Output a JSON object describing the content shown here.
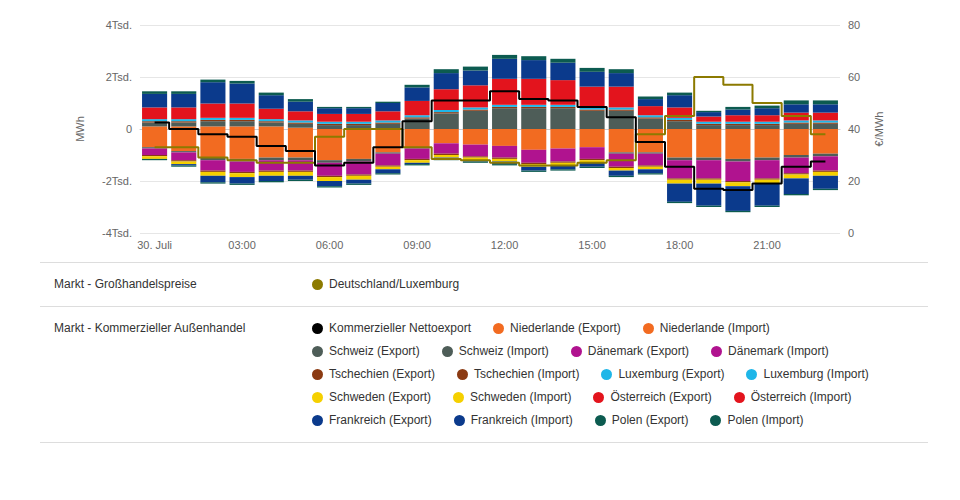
{
  "chart_data": {
    "type": "bar",
    "stacked": true,
    "grid": true,
    "legend": "bottom",
    "ylabel": "MWh",
    "y2label": "€/MWh",
    "x": [
      "30. Juli",
      null,
      null,
      "03:00",
      null,
      null,
      "06:00",
      null,
      null,
      "09:00",
      null,
      null,
      "12:00",
      null,
      null,
      "15:00",
      null,
      null,
      "18:00",
      null,
      null,
      "21:00",
      null,
      null
    ],
    "ylim": [
      -4000,
      4000
    ],
    "yticks": [
      {
        "value": -4000,
        "label": "-4Tsd."
      },
      {
        "value": -2000,
        "label": "-2Tsd."
      },
      0,
      {
        "value": 2000,
        "label": "2Tsd."
      },
      {
        "value": 4000,
        "label": "4Tsd."
      }
    ],
    "y2lim": [
      0,
      80
    ],
    "y2ticks": [
      0,
      20,
      40,
      60,
      80
    ],
    "series": [
      {
        "name": "Deutschland/Luxemburg",
        "group": "Markt - Großhandelspreise",
        "type": "line",
        "line_style": "step",
        "axis": "y2",
        "color": "#8c7a00",
        "values": [
          33,
          33,
          29,
          28,
          27,
          27,
          37,
          40,
          40,
          33,
          28.5,
          28,
          27,
          26,
          26,
          27,
          28,
          38,
          45,
          60,
          57,
          50,
          45,
          38
        ]
      },
      {
        "name": "Kommerzieller Nettoexport",
        "group": "Markt - Kommerzieller Außenhandel",
        "type": "line",
        "line_style": "step",
        "color": "#000000",
        "values": [
          250,
          0,
          -200,
          -300,
          -650,
          -850,
          -1400,
          -1300,
          -700,
          300,
          1100,
          1100,
          1450,
          1150,
          1100,
          850,
          450,
          -500,
          -1450,
          -2300,
          -2350,
          -2100,
          -1450,
          -1250
        ]
      },
      {
        "name": "Niederlande (Export)",
        "group": "Markt - Kommerzieller Außenhandel",
        "type": "bar",
        "color": "#f26b21",
        "values": [
          100,
          100,
          100,
          100,
          100,
          50,
          0,
          0,
          0,
          0,
          0,
          0,
          0,
          0,
          0,
          0,
          0,
          0,
          0,
          0,
          0,
          0,
          0,
          0
        ]
      },
      {
        "name": "Niederlande (Import)",
        "group": "Markt - Kommerzieller Außenhandel",
        "type": "bar",
        "color": "#f26b21",
        "values": [
          -700,
          -850,
          -1100,
          -1150,
          -1100,
          -1100,
          -1200,
          -1150,
          -900,
          -700,
          -550,
          -600,
          -650,
          -800,
          -750,
          -700,
          -900,
          -900,
          -1100,
          -1100,
          -1150,
          -1100,
          -1000,
          -950
        ]
      },
      {
        "name": "Schweiz (Export)",
        "group": "Markt - Kommerzieller Außenhandel",
        "type": "bar",
        "color": "#4e5d58",
        "values": [
          150,
          150,
          200,
          200,
          150,
          150,
          150,
          150,
          200,
          400,
          600,
          700,
          800,
          800,
          800,
          700,
          700,
          400,
          300,
          150,
          150,
          150,
          200,
          200
        ]
      },
      {
        "name": "Schweiz (Import)",
        "group": "Markt - Kommerzieller Außenhandel",
        "type": "bar",
        "color": "#4e5d58",
        "values": [
          -50,
          -50,
          -100,
          -100,
          -100,
          -100,
          -100,
          -100,
          -50,
          -50,
          0,
          0,
          0,
          0,
          0,
          0,
          -50,
          -50,
          -100,
          -100,
          -100,
          -100,
          -100,
          -100
        ]
      },
      {
        "name": "Dänemark (Export)",
        "group": "Markt - Kommerzieller Außenhandel",
        "type": "bar",
        "color": "#b0138f",
        "values": [
          0,
          0,
          0,
          0,
          0,
          0,
          0,
          0,
          0,
          0,
          0,
          0,
          0,
          0,
          0,
          0,
          0,
          0,
          0,
          0,
          0,
          0,
          0,
          0
        ]
      },
      {
        "name": "Dänemark (Import)",
        "group": "Markt - Kommerzieller Außenhandel",
        "type": "bar",
        "color": "#b0138f",
        "values": [
          -250,
          -300,
          -400,
          -400,
          -400,
          -400,
          -500,
          -500,
          -450,
          -400,
          -400,
          -450,
          -450,
          -500,
          -500,
          -450,
          -500,
          -450,
          -700,
          -700,
          -750,
          -700,
          -600,
          -550
        ]
      },
      {
        "name": "Tschechien (Export)",
        "group": "Markt - Kommerzieller Außenhandel",
        "type": "bar",
        "color": "#8b3a12",
        "values": [
          50,
          50,
          50,
          50,
          50,
          50,
          50,
          50,
          50,
          50,
          50,
          50,
          50,
          50,
          50,
          50,
          50,
          50,
          50,
          50,
          50,
          50,
          50,
          50
        ]
      },
      {
        "name": "Tschechien (Import)",
        "group": "Markt - Kommerzieller Außenhandel",
        "type": "bar",
        "color": "#8b3a12",
        "values": [
          -50,
          -50,
          -50,
          -50,
          -50,
          -50,
          -50,
          -50,
          -50,
          -50,
          -50,
          -50,
          -50,
          -50,
          -50,
          -50,
          -50,
          -50,
          -50,
          -50,
          -50,
          -50,
          -50,
          -50
        ]
      },
      {
        "name": "Luxemburg (Export)",
        "group": "Markt - Kommerzieller Außenhandel",
        "type": "bar",
        "color": "#1fb6e8",
        "values": [
          80,
          80,
          80,
          80,
          80,
          80,
          80,
          80,
          80,
          80,
          80,
          80,
          80,
          80,
          80,
          80,
          80,
          80,
          80,
          80,
          80,
          80,
          80,
          80
        ]
      },
      {
        "name": "Luxemburg (Import)",
        "group": "Markt - Kommerzieller Außenhandel",
        "type": "bar",
        "color": "#1fb6e8",
        "values": [
          0,
          0,
          0,
          0,
          0,
          0,
          0,
          0,
          0,
          0,
          0,
          0,
          0,
          0,
          0,
          0,
          0,
          0,
          0,
          0,
          0,
          0,
          0,
          0
        ]
      },
      {
        "name": "Schweden (Export)",
        "group": "Markt - Kommerzieller Außenhandel",
        "type": "bar",
        "color": "#f5d000",
        "values": [
          0,
          0,
          0,
          0,
          0,
          0,
          0,
          0,
          0,
          0,
          0,
          0,
          0,
          0,
          0,
          0,
          0,
          0,
          0,
          0,
          0,
          0,
          0,
          0
        ]
      },
      {
        "name": "Schweden (Import)",
        "group": "Markt - Kommerzieller Außenhandel",
        "type": "bar",
        "color": "#f5d000",
        "values": [
          -100,
          -100,
          -150,
          -150,
          -150,
          -150,
          -150,
          -150,
          -100,
          -100,
          -100,
          -100,
          -100,
          -100,
          -100,
          -100,
          -100,
          -100,
          -150,
          -150,
          -150,
          -150,
          -150,
          -150
        ]
      },
      {
        "name": "Österreich (Export)",
        "group": "Markt - Kommerzieller Außenhandel",
        "type": "bar",
        "color": "#e3141d",
        "values": [
          450,
          450,
          550,
          550,
          400,
          350,
          300,
          300,
          350,
          550,
          800,
          850,
          1000,
          1000,
          950,
          800,
          800,
          350,
          400,
          200,
          250,
          250,
          300,
          300
        ]
      },
      {
        "name": "Österreich (Import)",
        "group": "Markt - Kommerzieller Außenhandel",
        "type": "bar",
        "color": "#e3141d",
        "values": [
          0,
          0,
          0,
          0,
          0,
          0,
          0,
          0,
          0,
          0,
          0,
          0,
          0,
          0,
          0,
          0,
          0,
          0,
          0,
          0,
          0,
          0,
          0,
          0
        ]
      },
      {
        "name": "Frankreich (Export)",
        "group": "Markt - Kommerzieller Außenhandel",
        "type": "bar",
        "color": "#0b3a8c",
        "values": [
          520,
          520,
          820,
          770,
          520,
          370,
          220,
          220,
          320,
          520,
          620,
          570,
          770,
          720,
          670,
          570,
          520,
          270,
          470,
          170,
          220,
          270,
          320,
          320
        ]
      },
      {
        "name": "Frankreich (Import)",
        "group": "Markt - Kommerzieller Außenhandel",
        "type": "bar",
        "color": "#0b3a8c",
        "values": [
          0,
          -50,
          -250,
          -250,
          -200,
          -150,
          -200,
          -150,
          -150,
          -50,
          -50,
          -50,
          -100,
          -150,
          -150,
          -150,
          -200,
          -150,
          -700,
          -850,
          -950,
          -850,
          -600,
          -500
        ]
      },
      {
        "name": "Polen (Export)",
        "group": "Markt - Kommerzieller Außenhandel",
        "type": "bar",
        "color": "#0c5b50",
        "values": [
          100,
          100,
          100,
          100,
          100,
          100,
          50,
          50,
          50,
          100,
          150,
          150,
          150,
          150,
          150,
          150,
          150,
          100,
          100,
          50,
          100,
          100,
          150,
          150
        ]
      },
      {
        "name": "Polen (Import)",
        "group": "Markt - Kommerzieller Außenhandel",
        "type": "bar",
        "color": "#0c5b50",
        "values": [
          -50,
          -50,
          -50,
          -50,
          -50,
          -50,
          -50,
          -50,
          -50,
          -50,
          -50,
          -50,
          -50,
          -50,
          -50,
          -50,
          -50,
          -50,
          -50,
          -50,
          -50,
          -50,
          -50,
          -50
        ]
      }
    ]
  }
}
